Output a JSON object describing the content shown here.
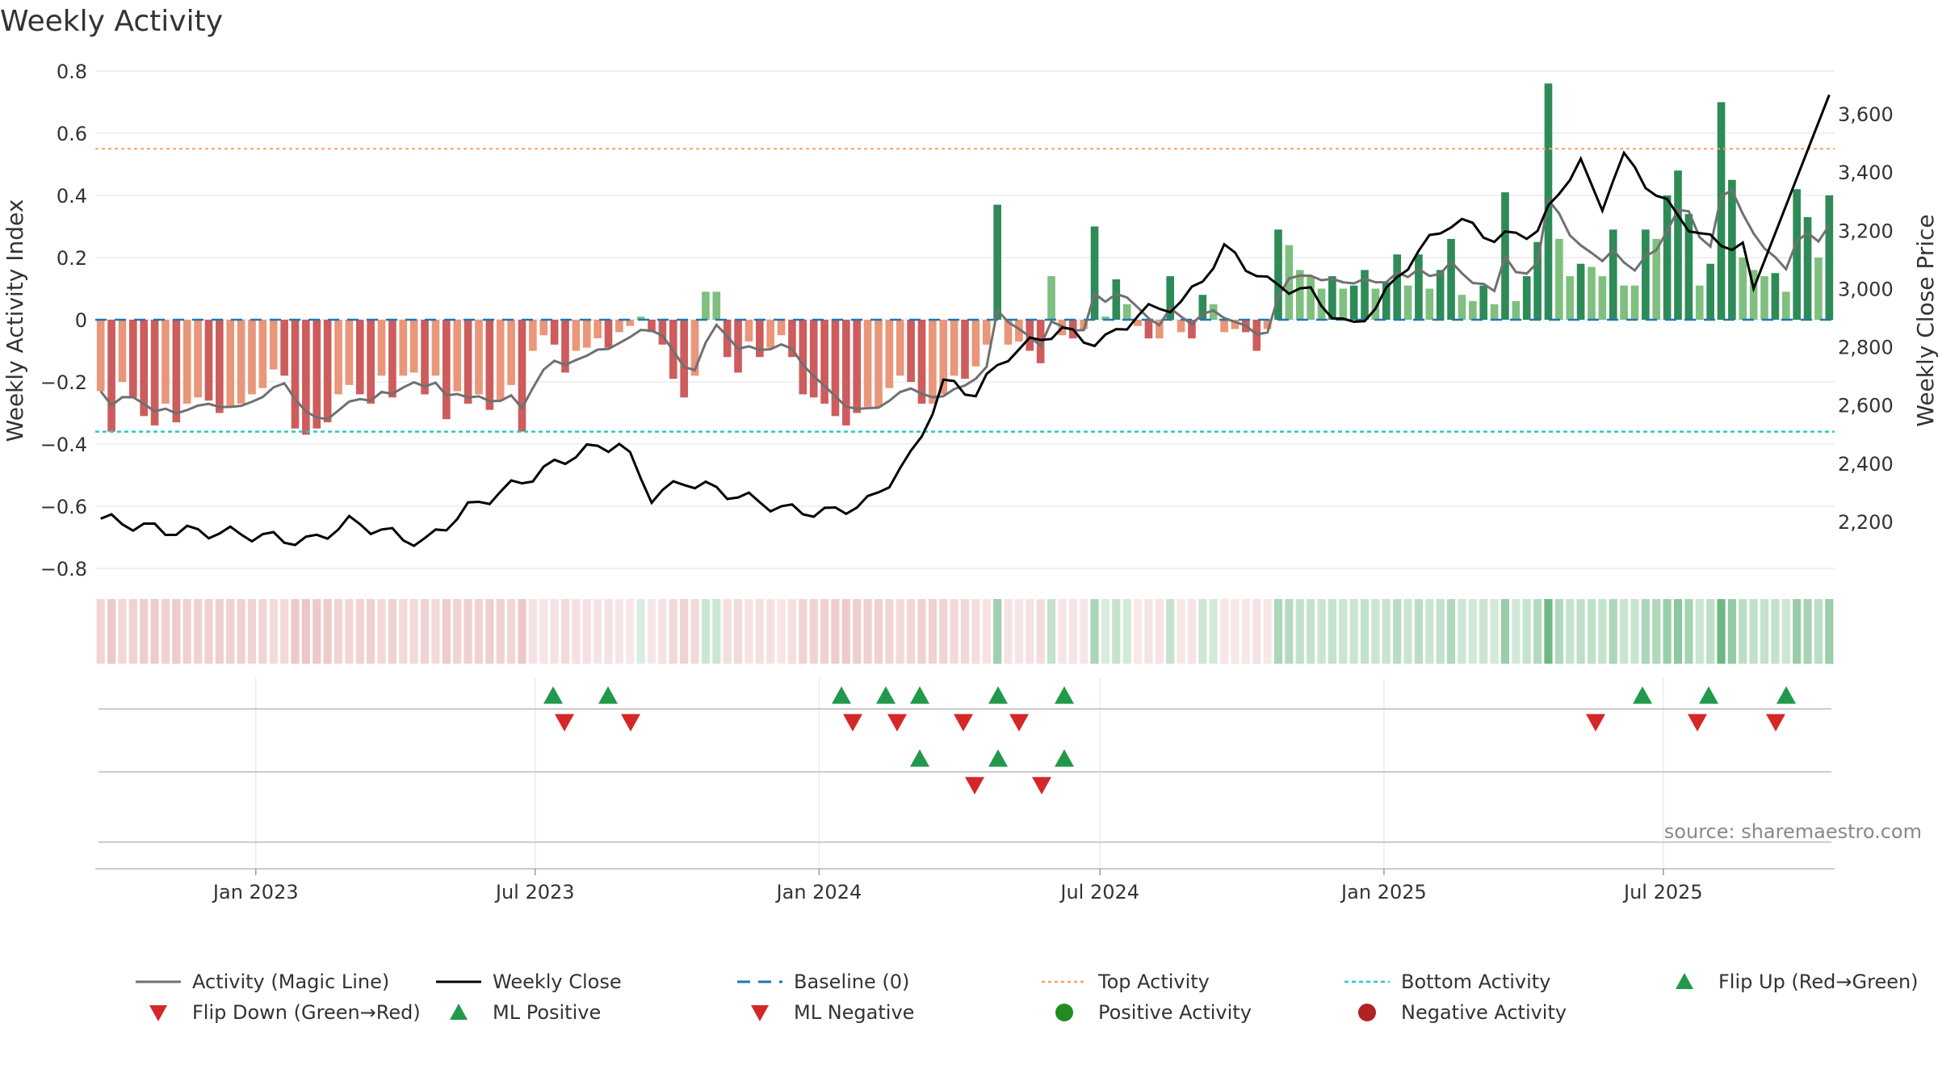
{
  "title": "Weekly Activity",
  "source": "source: sharemaestro.com",
  "colors": {
    "bar_pos_strong": "#2e8b57",
    "bar_pos_weak": "#7fbf7f",
    "bar_neg_strong": "#cd5c5c",
    "bar_neg_weak": "#e9967a",
    "magic_line": "#707070",
    "close_line": "#000000",
    "baseline": "#1f77b4",
    "top_line": "#f4a460",
    "bottom_line": "#22cccc",
    "up_marker": "#22994a",
    "down_marker": "#d62728",
    "pos_dot": "#228b22",
    "neg_dot": "#b22222"
  },
  "chart_data": {
    "type": "bar+line",
    "start_date": "2022-09-19",
    "weeks": 158,
    "activity": [
      -0.23,
      -0.36,
      -0.2,
      -0.25,
      -0.31,
      -0.34,
      -0.27,
      -0.33,
      -0.27,
      -0.25,
      -0.26,
      -0.3,
      -0.28,
      -0.27,
      -0.24,
      -0.22,
      -0.16,
      -0.18,
      -0.35,
      -0.37,
      -0.35,
      -0.33,
      -0.24,
      -0.21,
      -0.24,
      -0.27,
      -0.18,
      -0.25,
      -0.18,
      -0.17,
      -0.24,
      -0.18,
      -0.32,
      -0.23,
      -0.27,
      -0.24,
      -0.29,
      -0.26,
      -0.21,
      -0.36,
      -0.1,
      -0.05,
      -0.08,
      -0.17,
      -0.1,
      -0.09,
      -0.06,
      -0.09,
      -0.04,
      -0.02,
      0.01,
      -0.04,
      -0.08,
      -0.19,
      -0.25,
      -0.18,
      0.09,
      0.09,
      -0.12,
      -0.17,
      -0.07,
      -0.12,
      -0.09,
      -0.05,
      -0.12,
      -0.24,
      -0.25,
      -0.27,
      -0.31,
      -0.34,
      -0.3,
      -0.28,
      -0.28,
      -0.22,
      -0.18,
      -0.2,
      -0.27,
      -0.27,
      -0.24,
      -0.18,
      -0.19,
      -0.15,
      -0.08,
      0.37,
      -0.08,
      -0.07,
      -0.1,
      -0.14,
      0.14,
      -0.05,
      -0.06,
      -0.03,
      0.3,
      0.01,
      0.13,
      0.05,
      -0.02,
      -0.06,
      -0.06,
      0.14,
      -0.04,
      -0.06,
      0.08,
      0.05,
      -0.04,
      -0.03,
      -0.04,
      -0.1,
      -0.03,
      0.29,
      0.24,
      0.16,
      0.14,
      0.1,
      0.14,
      0.1,
      0.11,
      0.16,
      0.1,
      0.12,
      0.21,
      0.11,
      0.21,
      0.1,
      0.16,
      0.26,
      0.08,
      0.06,
      0.11,
      0.05,
      0.41,
      0.06,
      0.14,
      0.25,
      0.76,
      0.26,
      0.14,
      0.18,
      0.17,
      0.14,
      0.29,
      0.11,
      0.11,
      0.29,
      0.26,
      0.4,
      0.48,
      0.34,
      0.11,
      0.18,
      0.7,
      0.45,
      0.2,
      0.16,
      0.14,
      0.15,
      0.09,
      0.42,
      0.33,
      0.2,
      0.4
    ]
  },
  "left_axis": {
    "label": "Weekly Activity Index",
    "ticks": [
      "0.8",
      "0.6",
      "0.4",
      "0.2",
      "0",
      "−0.2",
      "−0.4",
      "−0.6",
      "−0.8"
    ]
  },
  "right_axis": {
    "label": "Weekly Close Price",
    "ticks": [
      "3,600",
      "3,400",
      "3,200",
      "3,000",
      "2,800",
      "2,600",
      "2,400",
      "2,200"
    ]
  },
  "x_ticks": [
    "Jan 2023",
    "Jul 2023",
    "Jan 2024",
    "Jul 2024",
    "Jan 2025",
    "Jul 2025"
  ],
  "legend": [
    {
      "label": "Activity (Magic Line)",
      "kind": "line-grey"
    },
    {
      "label": "Weekly Close",
      "kind": "line-black"
    },
    {
      "label": "Baseline (0)",
      "kind": "dash-blue"
    },
    {
      "label": "Top Activity",
      "kind": "dot-orange"
    },
    {
      "label": "Bottom Activity",
      "kind": "dot-cyan"
    },
    {
      "label": "Flip Up (Red→Green)",
      "kind": "tri-up"
    },
    {
      "label": "Flip Down (Green→Red)",
      "kind": "tri-down"
    },
    {
      "label": "ML Positive",
      "kind": "tri-up"
    },
    {
      "label": "ML Negative",
      "kind": "tri-down"
    },
    {
      "label": "Positive Activity",
      "kind": "dot-green"
    },
    {
      "label": "Negative Activity",
      "kind": "dot-red"
    }
  ]
}
